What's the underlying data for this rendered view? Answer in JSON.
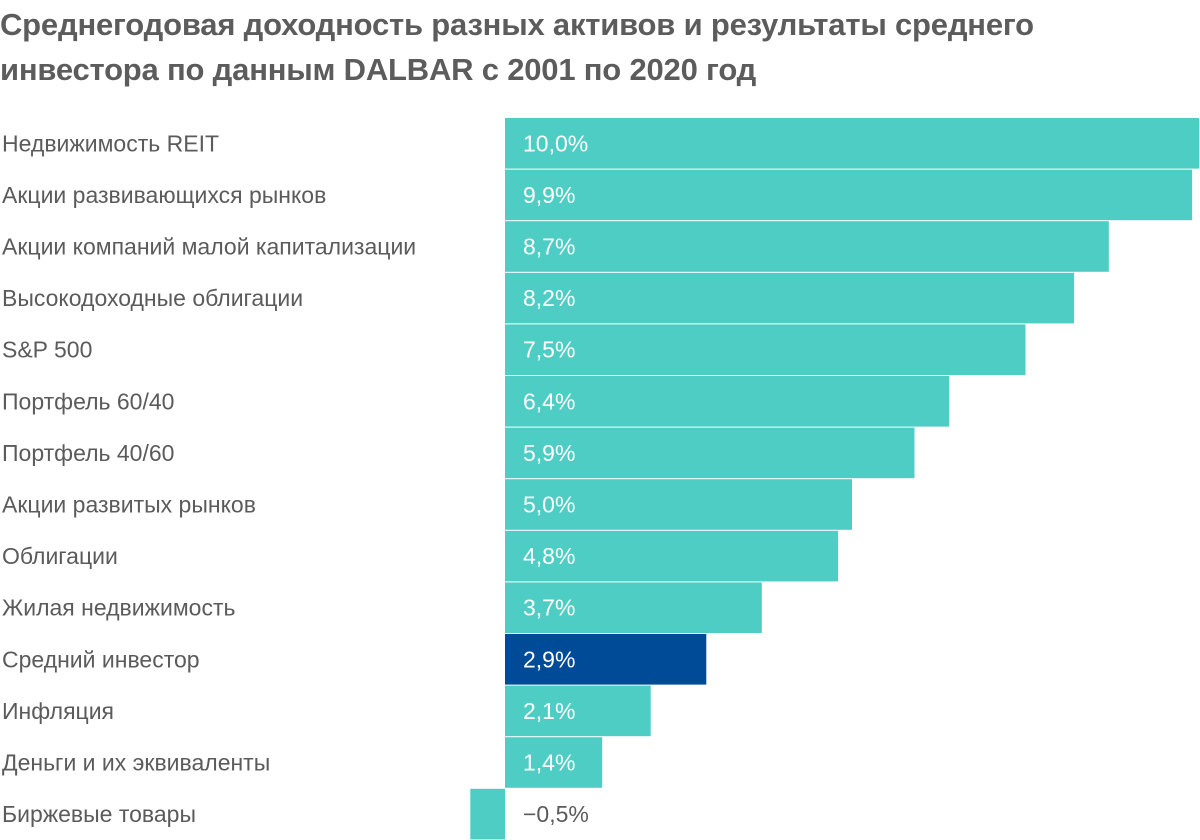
{
  "chart_data": {
    "type": "bar",
    "orientation": "horizontal",
    "title": "Среднегодовая доходность разных активов и результаты среднего инвестора по данным DALBAR с 2001 по 2020 год",
    "categories": [
      "Недвижимость REIT",
      "Акции развивающихся рынков",
      "Акции компаний малой капитализации",
      "Высокодоходные облигации",
      "S&P 500",
      "Портфель 60/40",
      "Портфель 40/60",
      "Акции развитых рынков",
      "Облигации",
      "Жилая недвижимость",
      "Средний инвестор",
      "Инфляция",
      "Деньги и их эквиваленты",
      "Биржевые товары"
    ],
    "values": [
      10.0,
      9.9,
      8.7,
      8.2,
      7.5,
      6.4,
      5.9,
      5.0,
      4.8,
      3.7,
      2.9,
      2.1,
      1.4,
      -0.5
    ],
    "value_labels": [
      "10,0%",
      "9,9%",
      "8,7%",
      "8,2%",
      "7,5%",
      "6,4%",
      "5,9%",
      "5,0%",
      "4,8%",
      "3,7%",
      "2,9%",
      "2,1%",
      "1,4%",
      "−0,5%"
    ],
    "highlight_category": "Средний инвестор",
    "colors": {
      "bar": "#4ecdc4",
      "highlight": "#004b97",
      "separator": "#ffffff",
      "label_text": "#5b5b5b",
      "title_text": "#5c5c5c",
      "value_text_inside": "#ffffff"
    },
    "xlim": [
      -0.5,
      10.0
    ],
    "xlabel": "",
    "ylabel": "",
    "grid": false,
    "legend": "none"
  }
}
